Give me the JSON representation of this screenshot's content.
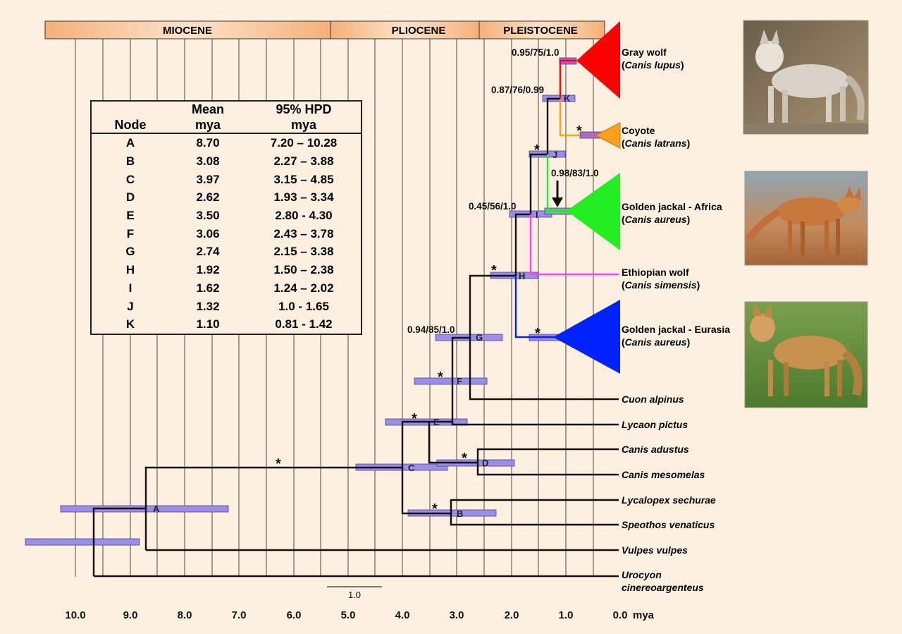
{
  "epochs": [
    "MIOCENE",
    "PLIOCENE",
    "PLEISTOCENE"
  ],
  "axis": {
    "ticks": [
      "10.0",
      "9.0",
      "8.0",
      "7.0",
      "6.0",
      "5.0",
      "4.0",
      "3.0",
      "2.0",
      "1.0",
      "0.0"
    ],
    "unit": "mya",
    "scale_label": "1.0"
  },
  "table": {
    "headers": {
      "node": "Node",
      "mean_1": "Mean",
      "mean_2": "mya",
      "hpd_1": "95% HPD",
      "hpd_2": "mya"
    },
    "rows": [
      {
        "node": "A",
        "mean": "8.70",
        "hpd": "7.20 – 10.28"
      },
      {
        "node": "B",
        "mean": "3.08",
        "hpd": "2.27 – 3.88"
      },
      {
        "node": "C",
        "mean": "3.97",
        "hpd": "3.15 – 4.85"
      },
      {
        "node": "D",
        "mean": "2.62",
        "hpd": "1.93 – 3.34"
      },
      {
        "node": "E",
        "mean": "3.50",
        "hpd": "2.80 - 4.30"
      },
      {
        "node": "F",
        "mean": "3.06",
        "hpd": "2.43 – 3.78"
      },
      {
        "node": "G",
        "mean": "2.74",
        "hpd": "2.15 – 3.38"
      },
      {
        "node": "H",
        "mean": "1.92",
        "hpd": "1.50 – 2.38"
      },
      {
        "node": "I",
        "mean": "1.62",
        "hpd": "1.24 – 2.02"
      },
      {
        "node": "J",
        "mean": "1.32",
        "hpd": "1.0 - 1.65"
      },
      {
        "node": "K",
        "mean": "1.10",
        "hpd": "0.81 - 1.42"
      }
    ]
  },
  "support_labels": {
    "gray_wolf": "0.95/75/1.0",
    "k": "0.87/76/0.99",
    "africa": "0.98/83/1.0",
    "i": "0.45/56/1.0",
    "g": "0.94/85/1.0"
  },
  "star": "*",
  "taxa": {
    "gray_wolf": {
      "common": "Gray wolf",
      "latin": "Canis lupus"
    },
    "coyote": {
      "common": "Coyote",
      "latin": "Canis latrans"
    },
    "jackal_africa": {
      "common": "Golden jackal - Africa",
      "latin": "Canis aureus"
    },
    "ethiopian_wolf": {
      "common": "Ethiopian wolf",
      "latin": "Canis simensis"
    },
    "jackal_eurasia": {
      "common": "Golden jackal - Eurasia",
      "latin": "Canis aureus"
    },
    "cuon": "Cuon alpinus",
    "lycaon": "Lycaon pictus",
    "adustus": "Canis adustus",
    "mesomelas": "Canis mesomelas",
    "lycalopex": "Lycalopex sechurae",
    "speothos": "Speothos venaticus",
    "vulpes": "Vulpes vulpes",
    "urocyon_1": "Urocyon",
    "urocyon_2": "cinereoargenteus"
  },
  "colors": {
    "background": "#fdf0e0",
    "hpd_bar": "#9b8ee6",
    "gray_wolf": "#ff0000",
    "coyote": "#f7a01a",
    "jackal_africa": "#22ee22",
    "ethiopian_wolf": "#ff40ff",
    "jackal_eurasia": "#0022ff",
    "epoch_bar": "#f4b07a"
  }
}
